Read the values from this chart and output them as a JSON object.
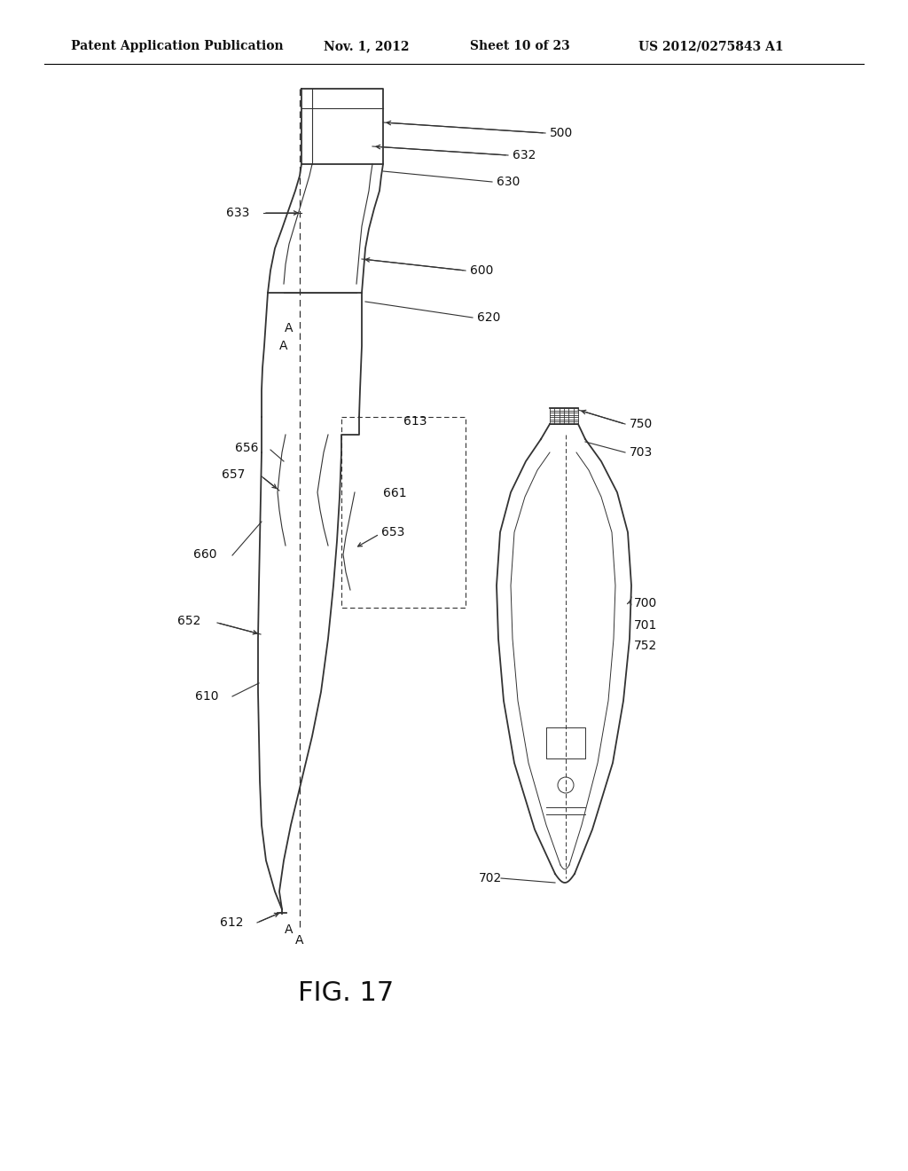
{
  "bg_color": "#ffffff",
  "header_text": "Patent Application Publication",
  "header_date": "Nov. 1, 2012",
  "header_sheet": "Sheet 10 of 23",
  "header_patent": "US 2012/0275843 A1",
  "figure_label": "FIG. 17",
  "line_color": "#333333",
  "text_color": "#111111",
  "lw_main": 1.3,
  "lw_thin": 0.8,
  "lw_inner": 0.7
}
